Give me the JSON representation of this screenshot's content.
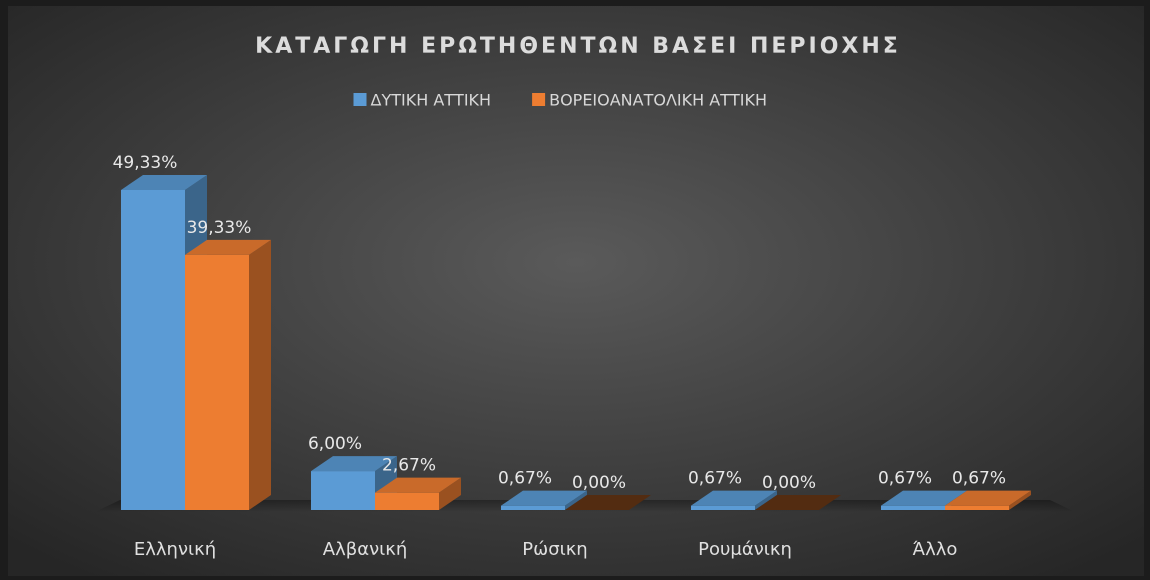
{
  "chart_data": {
    "type": "bar3d",
    "title": "ΚΑΤΑΓΩΓΗ ΕΡΩΤΗΘΕΝΤΩΝ ΒΑΣΕΙ ΠΕΡΙΟΧΗΣ",
    "categories": [
      "Ελληνική",
      "Αλβανική",
      "Ρώσικη",
      "Ρουμάνικη",
      "Άλλο"
    ],
    "series": [
      {
        "name": "ΔΥΤΙΚΗ ΑΤΤΙΚΗ",
        "color": "#5b9bd5",
        "values": [
          49.33,
          6.0,
          0.67,
          0.67,
          0.67
        ],
        "value_labels": [
          "49,33%",
          "6,00%",
          "0,67%",
          "0,67%",
          "0,67%"
        ]
      },
      {
        "name": "ΒΟΡΕΙΟΑΝΑΤΟΛΙΚΗ ΑΤΤΙΚΗ",
        "color": "#ed7d31",
        "values": [
          39.33,
          2.67,
          0.0,
          0.0,
          0.67
        ],
        "value_labels": [
          "39,33%",
          "2,67%",
          "0,00%",
          "0,00%",
          "0,67%"
        ]
      }
    ],
    "legend": "top"
  }
}
